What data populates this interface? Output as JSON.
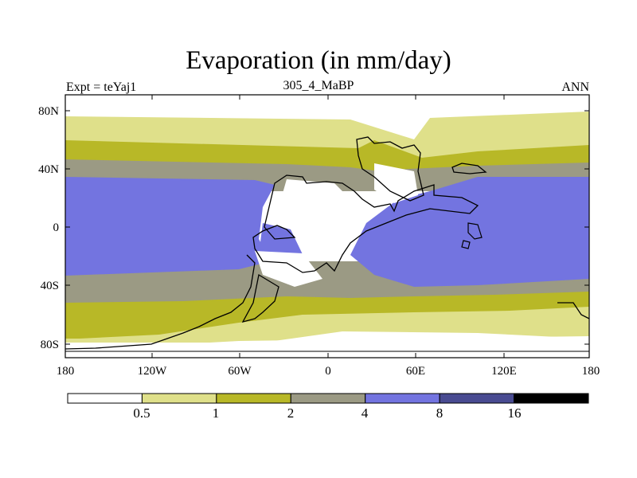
{
  "header": {
    "title": "Evaporation (in mm/day)",
    "left_label": "Expt = teYaj1",
    "center_label": "305_4_MaBP",
    "right_label": "ANN"
  },
  "map": {
    "lat_ticks": [
      "80N",
      "40N",
      "0",
      "40S",
      "80S"
    ],
    "lon_ticks": [
      "180",
      "120W",
      "60W",
      "0",
      "60E",
      "120E",
      "180"
    ],
    "coastline_color": "#000000"
  },
  "colorbar": {
    "levels": [
      "0.5",
      "1",
      "2",
      "4",
      "8",
      "16"
    ],
    "colors": [
      "#ffffff",
      "#dfe08a",
      "#b8b827",
      "#9b9a84",
      "#7374e0",
      "#494b91",
      "#000000"
    ]
  }
}
